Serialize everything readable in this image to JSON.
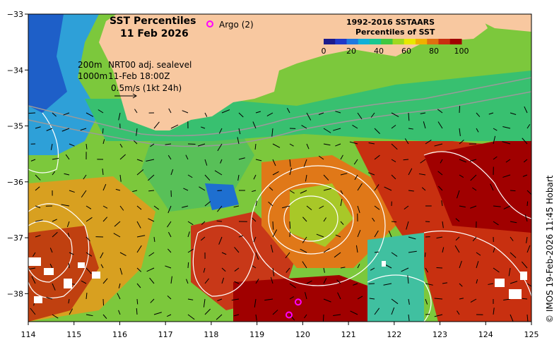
{
  "title": {
    "line1": "SST Percentiles",
    "line2": "11 Feb 2026"
  },
  "argo": {
    "label": "Argo (2)",
    "color": "#ff00ff"
  },
  "legend": {
    "title_line1": "1992-2016 SSTAARS",
    "title_line2": "Percentiles of SST",
    "colors": [
      "#1b1b8c",
      "#2038c8",
      "#1e78e0",
      "#10b0d8",
      "#18c890",
      "#40c840",
      "#a0d820",
      "#e8e800",
      "#f0b000",
      "#e07010",
      "#c83010",
      "#a00000"
    ],
    "tick_labels": [
      "0",
      "20",
      "40",
      "60",
      "80",
      "100"
    ]
  },
  "annotations": {
    "depth200": "200m",
    "sealevel": "NRT00 adj. sealevel",
    "depth1000": "1000m",
    "time": "11-Feb 18:00Z",
    "velocity": "0.5m/s (1kt 24h)"
  },
  "credit": "© IMOS 19-Feb-2026 11:45 Hobart",
  "axes": {
    "x_ticks": [
      "114",
      "115",
      "116",
      "117",
      "118",
      "119",
      "120",
      "121",
      "122",
      "123",
      "124",
      "125"
    ],
    "y_ticks": [
      "−33",
      "−34",
      "−35",
      "−36",
      "−37",
      "−38"
    ],
    "xlim": [
      114,
      125
    ],
    "ylim": [
      -38.5,
      -33
    ]
  },
  "colors": {
    "land": "#f8c8a0",
    "frame": "#000000"
  },
  "argo_floats": [
    {
      "lon": 119.9,
      "lat": -38.15
    },
    {
      "lon": 119.7,
      "lat": -38.38
    }
  ]
}
